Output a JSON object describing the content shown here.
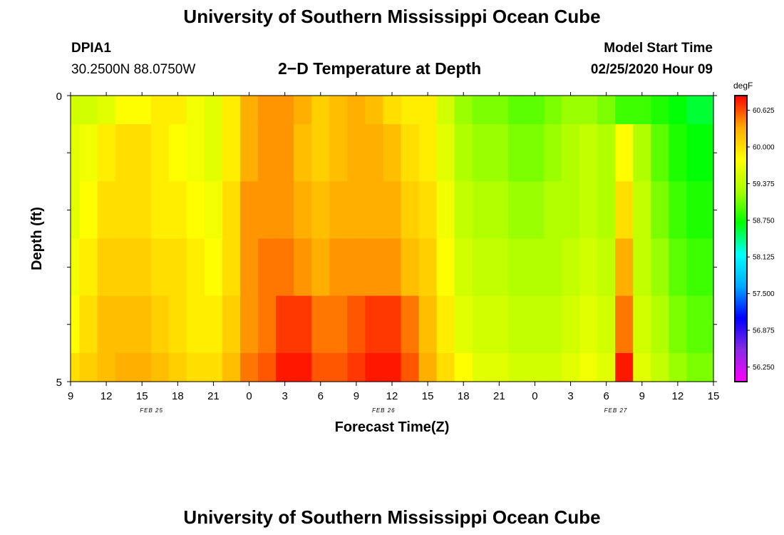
{
  "header": {
    "title": "University of Southern Mississippi Ocean Cube",
    "station_id": "DPIA1",
    "station_coords": "30.2500N 88.0750W",
    "model_start_label": "Model Start Time",
    "model_start_value": "02/25/2020 Hour 09"
  },
  "footer": {
    "title": "University of Southern Mississippi Ocean Cube"
  },
  "chart_data": {
    "type": "heatmap",
    "title": "2−D Temperature at Depth",
    "xlabel": "Forecast Time(Z)",
    "ylabel": "Depth (ft)",
    "x_hours_from_start": [
      0,
      1.5,
      3,
      4.5,
      6,
      7.5,
      9,
      10.5,
      12,
      13.5,
      15,
      16.5,
      18,
      19.5,
      21,
      22.5,
      24,
      25.5,
      27,
      28.5,
      30,
      31.5,
      33,
      34.5,
      36,
      37.5,
      39,
      40.5,
      42,
      43.5,
      45,
      46.5,
      48,
      49.5,
      51,
      52.5
    ],
    "y_depths": [
      0,
      1,
      2,
      3,
      4,
      5
    ],
    "x_tick_labels": [
      "9",
      "12",
      "15",
      "18",
      "21",
      "0",
      "3",
      "6",
      "9",
      "12",
      "15",
      "18",
      "21",
      "0",
      "3",
      "6",
      "9",
      "12",
      "15"
    ],
    "x_date_labels": [
      {
        "label": "FEB 25",
        "hour": 6.8
      },
      {
        "label": "FEB 26",
        "hour": 26.3
      },
      {
        "label": "FEB 27",
        "hour": 45.8
      }
    ],
    "y_tick_labels": [
      "0",
      "5"
    ],
    "xlim": [
      0,
      54
    ],
    "ylim": [
      0,
      5
    ],
    "grid": false,
    "colorbar": {
      "unit": "degF",
      "min": 56.0,
      "max": 60.875,
      "colors": [
        "#ff00ff",
        "#8a2be2",
        "#0000ff",
        "#00aaff",
        "#00ffff",
        "#00ff00",
        "#aaff00",
        "#ffff00",
        "#ffaa00",
        "#ff0000"
      ],
      "tick_labels": [
        "60.625",
        "60.000",
        "59.375",
        "58.750",
        "58.125",
        "57.500",
        "56.875",
        "56.250"
      ],
      "tick_values": [
        60.625,
        60.0,
        59.375,
        58.75,
        58.125,
        57.5,
        56.875,
        56.25
      ]
    },
    "values": [
      [
        59.5,
        59.5,
        59.6,
        59.8,
        59.8,
        59.9,
        59.9,
        59.7,
        59.6,
        59.9,
        60.3,
        60.4,
        60.4,
        60.3,
        60.1,
        60.2,
        60.3,
        60.2,
        60.0,
        59.9,
        59.9,
        59.5,
        59.2,
        59.1,
        59.1,
        59.0,
        59.0,
        59.1,
        59.2,
        59.2,
        59.1,
        58.9,
        58.9,
        58.8,
        58.7,
        58.6
      ],
      [
        59.6,
        59.7,
        59.9,
        60.0,
        60.0,
        59.9,
        59.8,
        59.7,
        59.6,
        59.9,
        60.3,
        60.4,
        60.4,
        60.2,
        60.1,
        60.2,
        60.3,
        60.3,
        60.2,
        60.0,
        59.9,
        59.6,
        59.3,
        59.2,
        59.2,
        59.1,
        59.1,
        59.2,
        59.3,
        59.4,
        59.3,
        59.8,
        59.3,
        59.0,
        58.8,
        58.7
      ],
      [
        59.6,
        59.8,
        60.0,
        60.0,
        60.0,
        59.9,
        59.9,
        59.8,
        59.7,
        60.0,
        60.4,
        60.4,
        60.4,
        60.3,
        60.2,
        60.3,
        60.3,
        60.3,
        60.3,
        60.1,
        60.0,
        59.7,
        59.4,
        59.3,
        59.3,
        59.2,
        59.2,
        59.3,
        59.3,
        59.4,
        59.3,
        60.0,
        59.4,
        59.1,
        58.9,
        58.8
      ],
      [
        59.7,
        59.9,
        60.1,
        60.1,
        60.1,
        60.0,
        60.0,
        59.9,
        59.8,
        60.0,
        60.4,
        60.5,
        60.5,
        60.4,
        60.3,
        60.4,
        60.4,
        60.4,
        60.4,
        60.2,
        60.1,
        59.8,
        59.5,
        59.4,
        59.4,
        59.3,
        59.3,
        59.3,
        59.4,
        59.5,
        59.4,
        60.3,
        59.4,
        59.2,
        59.0,
        58.9
      ],
      [
        59.8,
        60.0,
        60.2,
        60.2,
        60.2,
        60.1,
        60.0,
        59.9,
        59.9,
        60.1,
        60.4,
        60.5,
        60.7,
        60.7,
        60.5,
        60.5,
        60.6,
        60.7,
        60.7,
        60.5,
        60.2,
        59.9,
        59.6,
        59.5,
        59.5,
        59.4,
        59.4,
        59.4,
        59.5,
        59.6,
        59.5,
        60.5,
        59.5,
        59.3,
        59.1,
        59.0
      ],
      [
        60.0,
        60.1,
        60.2,
        60.3,
        60.3,
        60.2,
        60.1,
        60.0,
        60.0,
        60.2,
        60.5,
        60.6,
        60.8,
        60.8,
        60.6,
        60.6,
        60.7,
        60.8,
        60.8,
        60.6,
        60.3,
        60.0,
        59.8,
        59.6,
        59.6,
        59.5,
        59.5,
        59.5,
        59.6,
        59.7,
        59.6,
        60.8,
        59.6,
        59.4,
        59.2,
        59.1
      ]
    ]
  }
}
